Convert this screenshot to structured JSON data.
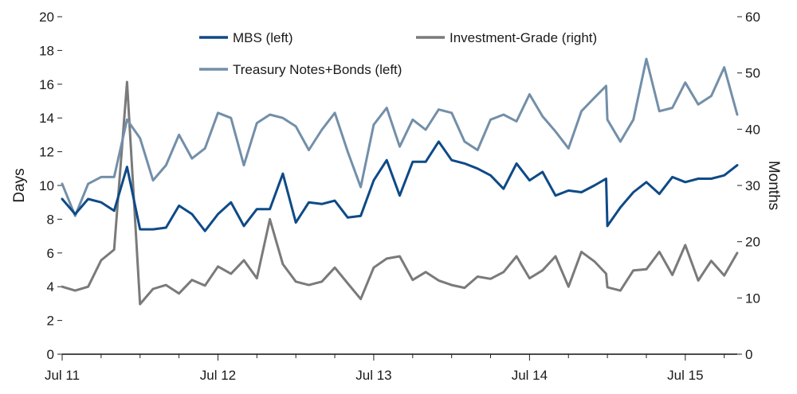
{
  "chart_data": {
    "type": "line",
    "x_ticks": [
      "Jul 11",
      "Jul 12",
      "Jul 13",
      "Jul 14",
      "Jul 15"
    ],
    "x_start": "Jul 11",
    "x_end": "Nov 15",
    "y_left": {
      "label": "Days",
      "ticks": [
        0,
        2,
        4,
        6,
        8,
        10,
        12,
        14,
        16,
        18,
        20
      ],
      "range": [
        0,
        20
      ]
    },
    "y_right": {
      "label": "Months",
      "ticks": [
        0,
        10,
        20,
        30,
        40,
        50,
        60
      ],
      "range": [
        0,
        60
      ]
    },
    "legend_position": "top",
    "series": [
      {
        "name": "MBS (left)",
        "axis": "left",
        "color": "#0e4a87",
        "points": [
          [
            0,
            9.2
          ],
          [
            1,
            8.3
          ],
          [
            2,
            9.2
          ],
          [
            3,
            9.0
          ],
          [
            4,
            8.5
          ],
          [
            5,
            11.1
          ],
          [
            6,
            7.4
          ],
          [
            7,
            7.4
          ],
          [
            8,
            7.5
          ],
          [
            9,
            8.8
          ],
          [
            10,
            8.3
          ],
          [
            11,
            7.3
          ],
          [
            12,
            8.3
          ],
          [
            13,
            9.0
          ],
          [
            14,
            7.6
          ],
          [
            15,
            8.6
          ],
          [
            16,
            8.6
          ],
          [
            17,
            10.7
          ],
          [
            18,
            7.8
          ],
          [
            19,
            9.0
          ],
          [
            20,
            8.9
          ],
          [
            21,
            9.1
          ],
          [
            22,
            8.1
          ],
          [
            23,
            8.2
          ],
          [
            24,
            10.3
          ],
          [
            25,
            11.5
          ],
          [
            26,
            9.4
          ],
          [
            27,
            11.4
          ],
          [
            28,
            11.4
          ],
          [
            29,
            12.6
          ],
          [
            30,
            11.5
          ],
          [
            31,
            11.3
          ],
          [
            32,
            11.0
          ],
          [
            33,
            10.6
          ],
          [
            34,
            9.8
          ],
          [
            35,
            11.3
          ],
          [
            36,
            10.3
          ],
          [
            37,
            10.8
          ],
          [
            38,
            9.4
          ],
          [
            39,
            9.7
          ],
          [
            40,
            9.6
          ],
          [
            41,
            10.0
          ],
          [
            41.9,
            10.4
          ],
          [
            42,
            7.6
          ],
          [
            43,
            8.7
          ],
          [
            44,
            9.6
          ],
          [
            45,
            10.2
          ],
          [
            46,
            9.5
          ],
          [
            47,
            10.5
          ],
          [
            48,
            10.2
          ],
          [
            49,
            10.4
          ],
          [
            50,
            10.4
          ],
          [
            51,
            10.6
          ],
          [
            52,
            11.2
          ]
        ]
      },
      {
        "name": "Investment-Grade (right)",
        "axis": "right",
        "color": "#7a7a7a",
        "points": [
          [
            0,
            12
          ],
          [
            1,
            11.3
          ],
          [
            2,
            12
          ],
          [
            3,
            16.7
          ],
          [
            4,
            18.6
          ],
          [
            5,
            48.4
          ],
          [
            6,
            8.9
          ],
          [
            7,
            11.6
          ],
          [
            8,
            12.3
          ],
          [
            9,
            10.8
          ],
          [
            10,
            13.2
          ],
          [
            11,
            12.2
          ],
          [
            12,
            15.6
          ],
          [
            13,
            14.3
          ],
          [
            14,
            16.7
          ],
          [
            15,
            13.5
          ],
          [
            16,
            24
          ],
          [
            17,
            16
          ],
          [
            18,
            12.9
          ],
          [
            19,
            12.3
          ],
          [
            20,
            12.9
          ],
          [
            21,
            15.4
          ],
          [
            22,
            12.6
          ],
          [
            23,
            9.8
          ],
          [
            24,
            15.4
          ],
          [
            25,
            17
          ],
          [
            26,
            17.4
          ],
          [
            27,
            13.2
          ],
          [
            28,
            14.6
          ],
          [
            29,
            13.1
          ],
          [
            30,
            12.3
          ],
          [
            31,
            11.8
          ],
          [
            32,
            13.8
          ],
          [
            33,
            13.4
          ],
          [
            34,
            14.6
          ],
          [
            35,
            17.4
          ],
          [
            36,
            13.5
          ],
          [
            37,
            14.9
          ],
          [
            38,
            17.4
          ],
          [
            39,
            12
          ],
          [
            40,
            18.2
          ],
          [
            41,
            16.5
          ],
          [
            41.9,
            14.3
          ],
          [
            42,
            11.9
          ],
          [
            43,
            11.3
          ],
          [
            44,
            14.9
          ],
          [
            45,
            15.1
          ],
          [
            46,
            18.2
          ],
          [
            47,
            14.1
          ],
          [
            48,
            19.4
          ],
          [
            49,
            13.1
          ],
          [
            50,
            16.6
          ],
          [
            51,
            14
          ],
          [
            52,
            18
          ]
        ]
      },
      {
        "name": "Treasury Notes+Bonds (left)",
        "axis": "left",
        "color": "#738fa9",
        "points": [
          [
            0,
            10.1
          ],
          [
            1,
            8.2
          ],
          [
            2,
            10.1
          ],
          [
            3,
            10.5
          ],
          [
            4,
            10.5
          ],
          [
            5,
            13.9
          ],
          [
            6,
            12.8
          ],
          [
            7,
            10.3
          ],
          [
            8,
            11.2
          ],
          [
            9,
            13.0
          ],
          [
            10,
            11.6
          ],
          [
            11,
            12.2
          ],
          [
            12,
            14.3
          ],
          [
            13,
            14.0
          ],
          [
            14,
            11.2
          ],
          [
            15,
            13.7
          ],
          [
            16,
            14.2
          ],
          [
            17,
            14.0
          ],
          [
            18,
            13.5
          ],
          [
            19,
            12.1
          ],
          [
            20,
            13.3
          ],
          [
            21,
            14.3
          ],
          [
            22,
            12.0
          ],
          [
            23,
            9.9
          ],
          [
            24,
            13.6
          ],
          [
            25,
            14.6
          ],
          [
            26,
            12.3
          ],
          [
            27,
            13.9
          ],
          [
            28,
            13.3
          ],
          [
            29,
            14.5
          ],
          [
            30,
            14.3
          ],
          [
            31,
            12.6
          ],
          [
            32,
            12.1
          ],
          [
            33,
            13.9
          ],
          [
            34,
            14.2
          ],
          [
            35,
            13.8
          ],
          [
            36,
            15.4
          ],
          [
            37,
            14.1
          ],
          [
            38,
            13.2
          ],
          [
            39,
            12.2
          ],
          [
            40,
            14.4
          ],
          [
            41,
            15.2
          ],
          [
            41.9,
            15.9
          ],
          [
            42,
            13.9
          ],
          [
            43,
            12.6
          ],
          [
            44,
            13.9
          ],
          [
            45,
            17.5
          ],
          [
            46,
            14.4
          ],
          [
            47,
            14.6
          ],
          [
            48,
            16.1
          ],
          [
            49,
            14.8
          ],
          [
            50,
            15.3
          ],
          [
            51,
            17.0
          ],
          [
            52,
            14.2
          ]
        ]
      }
    ]
  }
}
